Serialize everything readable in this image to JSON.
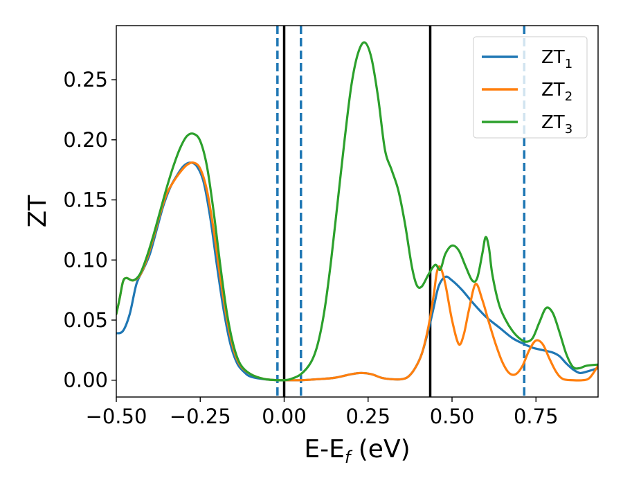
{
  "chart_data": {
    "type": "line",
    "xlabel_main": "E-E",
    "xlabel_sub": "f",
    "xlabel_unit": " (eV)",
    "ylabel": "ZT",
    "xlim": [
      -0.5,
      0.935
    ],
    "ylim": [
      -0.014,
      0.295
    ],
    "grid": false,
    "legend_position": "top-right",
    "x_ticks": [
      {
        "value": -0.5,
        "label": "−0.50"
      },
      {
        "value": -0.25,
        "label": "−0.25"
      },
      {
        "value": 0.0,
        "label": "0.00"
      },
      {
        "value": 0.25,
        "label": "0.25"
      },
      {
        "value": 0.5,
        "label": "0.50"
      },
      {
        "value": 0.75,
        "label": "0.75"
      }
    ],
    "y_ticks": [
      {
        "value": 0.0,
        "label": "0.00"
      },
      {
        "value": 0.05,
        "label": "0.05"
      },
      {
        "value": 0.1,
        "label": "0.10"
      },
      {
        "value": 0.15,
        "label": "0.15"
      },
      {
        "value": 0.2,
        "label": "0.20"
      },
      {
        "value": 0.25,
        "label": "0.25"
      }
    ],
    "vlines": [
      {
        "x": -0.02,
        "color": "#1f77b4",
        "style": "dashed"
      },
      {
        "x": 0.0,
        "color": "#000000",
        "style": "solid"
      },
      {
        "x": 0.05,
        "color": "#1f77b4",
        "style": "dashed"
      },
      {
        "x": 0.435,
        "color": "#000000",
        "style": "solid"
      },
      {
        "x": 0.715,
        "color": "#1f77b4",
        "style": "dashed"
      }
    ],
    "series": [
      {
        "name": "ZT",
        "sub": "1",
        "color": "#1f77b4",
        "points": [
          [
            -0.5,
            0.039
          ],
          [
            -0.48,
            0.041
          ],
          [
            -0.46,
            0.055
          ],
          [
            -0.44,
            0.08
          ],
          [
            -0.42,
            0.092
          ],
          [
            -0.4,
            0.105
          ],
          [
            -0.38,
            0.125
          ],
          [
            -0.36,
            0.145
          ],
          [
            -0.34,
            0.16
          ],
          [
            -0.32,
            0.17
          ],
          [
            -0.3,
            0.178
          ],
          [
            -0.28,
            0.181
          ],
          [
            -0.26,
            0.178
          ],
          [
            -0.24,
            0.165
          ],
          [
            -0.22,
            0.135
          ],
          [
            -0.2,
            0.095
          ],
          [
            -0.18,
            0.058
          ],
          [
            -0.16,
            0.03
          ],
          [
            -0.14,
            0.014
          ],
          [
            -0.12,
            0.007
          ],
          [
            -0.1,
            0.003
          ],
          [
            -0.06,
            0.0008
          ],
          [
            -0.02,
            0.0
          ],
          [
            0.0,
            0.0
          ],
          [
            0.05,
            0.0
          ],
          [
            0.1,
            0.0008
          ],
          [
            0.15,
            0.002
          ],
          [
            0.2,
            0.005
          ],
          [
            0.23,
            0.006
          ],
          [
            0.26,
            0.005
          ],
          [
            0.29,
            0.002
          ],
          [
            0.32,
            0.0008
          ],
          [
            0.35,
            0.0008
          ],
          [
            0.37,
            0.003
          ],
          [
            0.39,
            0.01
          ],
          [
            0.41,
            0.022
          ],
          [
            0.43,
            0.042
          ],
          [
            0.445,
            0.06
          ],
          [
            0.46,
            0.078
          ],
          [
            0.48,
            0.086
          ],
          [
            0.5,
            0.083
          ],
          [
            0.53,
            0.075
          ],
          [
            0.56,
            0.065
          ],
          [
            0.6,
            0.053
          ],
          [
            0.64,
            0.044
          ],
          [
            0.68,
            0.035
          ],
          [
            0.715,
            0.03
          ],
          [
            0.74,
            0.027
          ],
          [
            0.77,
            0.025
          ],
          [
            0.8,
            0.023
          ],
          [
            0.82,
            0.02
          ],
          [
            0.84,
            0.014
          ],
          [
            0.86,
            0.009
          ],
          [
            0.88,
            0.006
          ],
          [
            0.9,
            0.007
          ],
          [
            0.935,
            0.01
          ]
        ]
      },
      {
        "name": "ZT",
        "sub": "2",
        "color": "#ff7f0e",
        "points": [
          [
            -0.5,
            0.055
          ],
          [
            -0.49,
            0.068
          ],
          [
            -0.48,
            0.082
          ],
          [
            -0.47,
            0.085
          ],
          [
            -0.45,
            0.083
          ],
          [
            -0.43,
            0.087
          ],
          [
            -0.41,
            0.1
          ],
          [
            -0.39,
            0.118
          ],
          [
            -0.37,
            0.138
          ],
          [
            -0.35,
            0.155
          ],
          [
            -0.33,
            0.165
          ],
          [
            -0.31,
            0.173
          ],
          [
            -0.29,
            0.179
          ],
          [
            -0.27,
            0.181
          ],
          [
            -0.25,
            0.176
          ],
          [
            -0.23,
            0.158
          ],
          [
            -0.21,
            0.125
          ],
          [
            -0.19,
            0.085
          ],
          [
            -0.17,
            0.05
          ],
          [
            -0.15,
            0.025
          ],
          [
            -0.13,
            0.012
          ],
          [
            -0.1,
            0.005
          ],
          [
            -0.06,
            0.001
          ],
          [
            -0.02,
            0.0
          ],
          [
            0.0,
            0.0
          ],
          [
            0.05,
            0.0
          ],
          [
            0.1,
            0.0008
          ],
          [
            0.15,
            0.002
          ],
          [
            0.2,
            0.005
          ],
          [
            0.23,
            0.006
          ],
          [
            0.26,
            0.005
          ],
          [
            0.29,
            0.002
          ],
          [
            0.32,
            0.0008
          ],
          [
            0.35,
            0.0008
          ],
          [
            0.37,
            0.003
          ],
          [
            0.39,
            0.01
          ],
          [
            0.41,
            0.022
          ],
          [
            0.43,
            0.045
          ],
          [
            0.445,
            0.07
          ],
          [
            0.455,
            0.09
          ],
          [
            0.465,
            0.094
          ],
          [
            0.48,
            0.08
          ],
          [
            0.5,
            0.05
          ],
          [
            0.52,
            0.03
          ],
          [
            0.535,
            0.038
          ],
          [
            0.55,
            0.058
          ],
          [
            0.57,
            0.08
          ],
          [
            0.59,
            0.067
          ],
          [
            0.61,
            0.048
          ],
          [
            0.63,
            0.03
          ],
          [
            0.65,
            0.015
          ],
          [
            0.67,
            0.006
          ],
          [
            0.69,
            0.005
          ],
          [
            0.71,
            0.012
          ],
          [
            0.73,
            0.025
          ],
          [
            0.75,
            0.033
          ],
          [
            0.77,
            0.03
          ],
          [
            0.79,
            0.018
          ],
          [
            0.81,
            0.007
          ],
          [
            0.83,
            0.001
          ],
          [
            0.86,
            0.0
          ],
          [
            0.89,
            0.0
          ],
          [
            0.91,
            0.002
          ],
          [
            0.935,
            0.012
          ]
        ]
      },
      {
        "name": "ZT",
        "sub": "3",
        "color": "#2ca02c",
        "points": [
          [
            -0.5,
            0.055
          ],
          [
            -0.49,
            0.068
          ],
          [
            -0.48,
            0.082
          ],
          [
            -0.47,
            0.085
          ],
          [
            -0.45,
            0.083
          ],
          [
            -0.43,
            0.088
          ],
          [
            -0.41,
            0.102
          ],
          [
            -0.39,
            0.12
          ],
          [
            -0.37,
            0.14
          ],
          [
            -0.35,
            0.16
          ],
          [
            -0.33,
            0.178
          ],
          [
            -0.31,
            0.193
          ],
          [
            -0.29,
            0.203
          ],
          [
            -0.27,
            0.205
          ],
          [
            -0.25,
            0.199
          ],
          [
            -0.23,
            0.178
          ],
          [
            -0.21,
            0.14
          ],
          [
            -0.19,
            0.095
          ],
          [
            -0.17,
            0.055
          ],
          [
            -0.15,
            0.028
          ],
          [
            -0.13,
            0.013
          ],
          [
            -0.1,
            0.005
          ],
          [
            -0.06,
            0.001
          ],
          [
            -0.02,
            0.0
          ],
          [
            0.0,
            0.0
          ],
          [
            0.02,
            0.001
          ],
          [
            0.05,
            0.005
          ],
          [
            0.08,
            0.015
          ],
          [
            0.1,
            0.03
          ],
          [
            0.12,
            0.058
          ],
          [
            0.14,
            0.1
          ],
          [
            0.16,
            0.15
          ],
          [
            0.18,
            0.2
          ],
          [
            0.2,
            0.245
          ],
          [
            0.22,
            0.272
          ],
          [
            0.24,
            0.281
          ],
          [
            0.26,
            0.268
          ],
          [
            0.28,
            0.235
          ],
          [
            0.3,
            0.192
          ],
          [
            0.32,
            0.175
          ],
          [
            0.34,
            0.158
          ],
          [
            0.36,
            0.13
          ],
          [
            0.38,
            0.095
          ],
          [
            0.395,
            0.079
          ],
          [
            0.41,
            0.078
          ],
          [
            0.43,
            0.088
          ],
          [
            0.45,
            0.096
          ],
          [
            0.465,
            0.092
          ],
          [
            0.48,
            0.105
          ],
          [
            0.5,
            0.112
          ],
          [
            0.52,
            0.108
          ],
          [
            0.54,
            0.095
          ],
          [
            0.56,
            0.083
          ],
          [
            0.575,
            0.085
          ],
          [
            0.59,
            0.105
          ],
          [
            0.6,
            0.119
          ],
          [
            0.61,
            0.11
          ],
          [
            0.62,
            0.088
          ],
          [
            0.64,
            0.063
          ],
          [
            0.66,
            0.05
          ],
          [
            0.68,
            0.041
          ],
          [
            0.7,
            0.035
          ],
          [
            0.72,
            0.032
          ],
          [
            0.74,
            0.035
          ],
          [
            0.76,
            0.048
          ],
          [
            0.78,
            0.06
          ],
          [
            0.8,
            0.056
          ],
          [
            0.82,
            0.04
          ],
          [
            0.84,
            0.022
          ],
          [
            0.86,
            0.011
          ],
          [
            0.88,
            0.01
          ],
          [
            0.9,
            0.012
          ],
          [
            0.935,
            0.013
          ]
        ]
      }
    ]
  }
}
